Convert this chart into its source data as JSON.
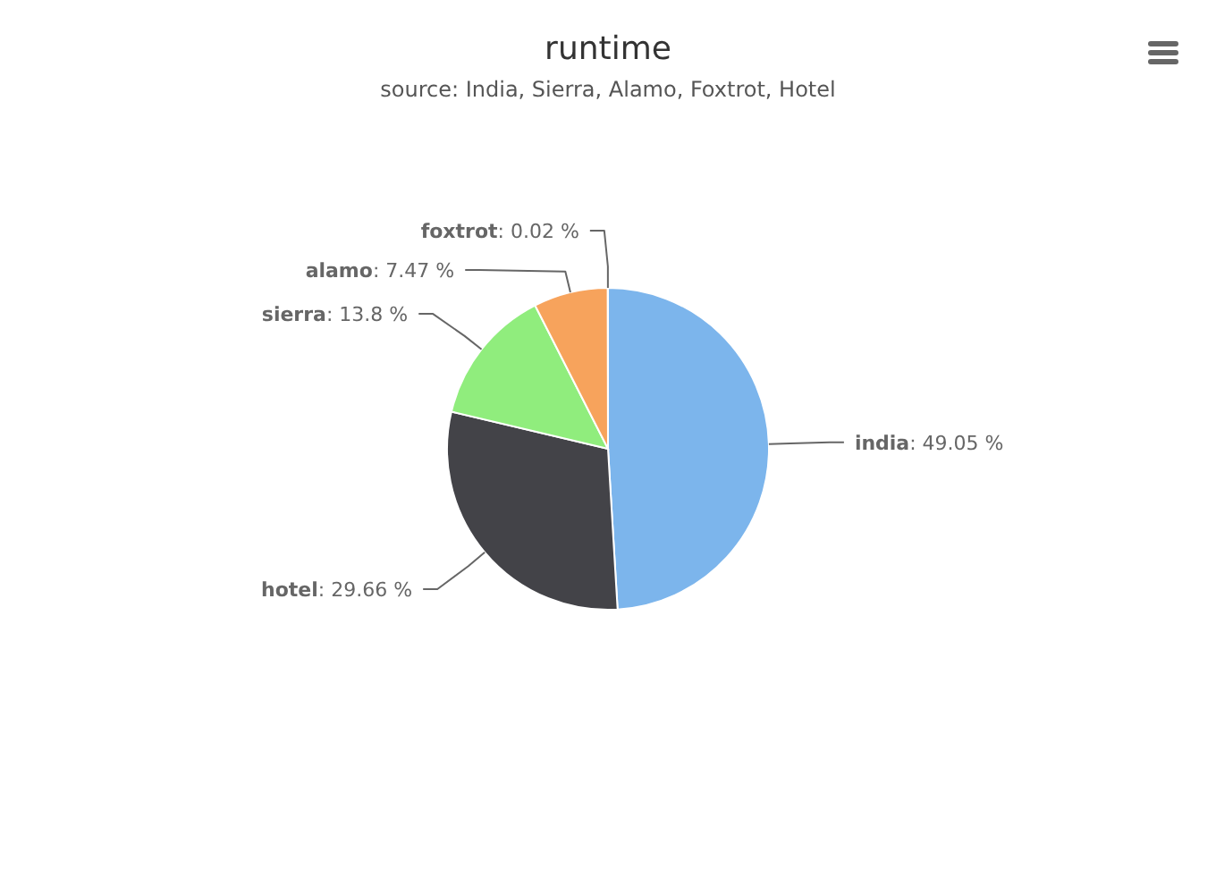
{
  "chart_data": {
    "type": "pie",
    "title": "runtime",
    "subtitle": "source: India, Sierra, Alamo, Foxtrot, Hotel",
    "categories": [
      "india",
      "hotel",
      "sierra",
      "alamo",
      "foxtrot"
    ],
    "values": [
      49.05,
      29.66,
      13.8,
      7.47,
      0.02
    ],
    "value_labels": [
      ": 49.05 %",
      ": 29.66 %",
      ": 13.8 %",
      ": 7.47 %",
      ": 0.02 %"
    ],
    "colors": [
      "#7cb5ec",
      "#434348",
      "#90ed7d",
      "#f7a35c",
      "#8085e9"
    ]
  }
}
